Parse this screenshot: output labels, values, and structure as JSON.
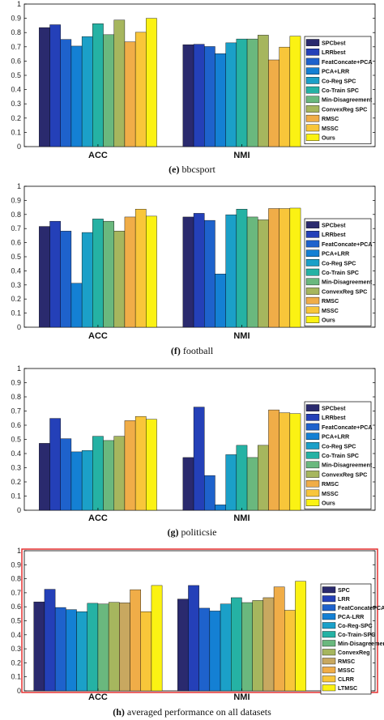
{
  "chart_data": [
    {
      "type": "bar",
      "caption_letter": "(e)",
      "caption_text": "bbcsport",
      "categories": [
        "ACC",
        "NMI"
      ],
      "ylim": [
        0,
        1
      ],
      "yticks": [
        "0",
        "0.1",
        "0.2",
        "0.3",
        "0.4",
        "0.5",
        "0.6",
        "0.7",
        "0.8",
        "0.9",
        "1"
      ],
      "legend_placement": "right",
      "highlight_border": false,
      "series": [
        {
          "name": "SPCbest",
          "color": "#2a2a6e",
          "values": [
            0.835,
            0.715
          ]
        },
        {
          "name": "LRRbest",
          "color": "#2440b8",
          "values": [
            0.855,
            0.718
          ]
        },
        {
          "name": "FeatConcate+PCA",
          "color": "#1e62cc",
          "values": [
            0.752,
            0.702
          ]
        },
        {
          "name": "PCA+LRR",
          "color": "#1480d4",
          "values": [
            0.705,
            0.652
          ]
        },
        {
          "name": "Co-Reg SPC",
          "color": "#1ba0c8",
          "values": [
            0.772,
            0.728
          ]
        },
        {
          "name": "Co-Train SPC",
          "color": "#25b2a4",
          "values": [
            0.862,
            0.755
          ]
        },
        {
          "name": "Min-Disagreement",
          "color": "#6ab87e",
          "values": [
            0.785,
            0.755
          ]
        },
        {
          "name": "ConvexReg SPC",
          "color": "#a6b65e",
          "values": [
            0.888,
            0.782
          ]
        },
        {
          "name": "RMSC",
          "color": "#f0ad48",
          "values": [
            0.735,
            0.608
          ]
        },
        {
          "name": "MSSC",
          "color": "#f8c63a",
          "values": [
            0.802,
            0.698
          ]
        },
        {
          "name": "Ours",
          "color": "#fbf213",
          "values": [
            0.9,
            0.775
          ]
        }
      ]
    },
    {
      "type": "bar",
      "caption_letter": "(f)",
      "caption_text": "football",
      "categories": [
        "ACC",
        "NMI"
      ],
      "ylim": [
        0,
        1
      ],
      "yticks": [
        "0",
        "0.1",
        "0.2",
        "0.3",
        "0.4",
        "0.5",
        "0.6",
        "0.7",
        "0.8",
        "0.9",
        "1"
      ],
      "legend_placement": "right",
      "highlight_border": false,
      "series": [
        {
          "name": "SPCbest",
          "color": "#2a2a6e",
          "values": [
            0.715,
            0.782
          ]
        },
        {
          "name": "LRRbest",
          "color": "#2440b8",
          "values": [
            0.752,
            0.808
          ]
        },
        {
          "name": "FeatConcate+PCA",
          "color": "#1e62cc",
          "values": [
            0.682,
            0.758
          ]
        },
        {
          "name": "PCA+LRR",
          "color": "#1480d4",
          "values": [
            0.312,
            0.378
          ]
        },
        {
          "name": "Co-Reg SPC",
          "color": "#1ba0c8",
          "values": [
            0.672,
            0.798
          ]
        },
        {
          "name": "Co-Train SPC",
          "color": "#25b2a4",
          "values": [
            0.768,
            0.838
          ]
        },
        {
          "name": "Min-Disagreement",
          "color": "#6ab87e",
          "values": [
            0.752,
            0.782
          ]
        },
        {
          "name": "ConvexReg SPC",
          "color": "#a6b65e",
          "values": [
            0.682,
            0.762
          ]
        },
        {
          "name": "RMSC",
          "color": "#f0ad48",
          "values": [
            0.782,
            0.842
          ]
        },
        {
          "name": "MSSC",
          "color": "#f8c63a",
          "values": [
            0.838,
            0.842
          ]
        },
        {
          "name": "Ours",
          "color": "#fbf213",
          "values": [
            0.788,
            0.845
          ]
        }
      ]
    },
    {
      "type": "bar",
      "caption_letter": "(g)",
      "caption_text": "politicsie",
      "categories": [
        "ACC",
        "NMI"
      ],
      "ylim": [
        0,
        1
      ],
      "yticks": [
        "0",
        "0.1",
        "0.2",
        "0.3",
        "0.4",
        "0.5",
        "0.6",
        "0.7",
        "0.8",
        "0.9",
        "1"
      ],
      "legend_placement": "right",
      "highlight_border": false,
      "series": [
        {
          "name": "SPCbest",
          "color": "#2a2a6e",
          "values": [
            0.472,
            0.372
          ]
        },
        {
          "name": "LRRbest",
          "color": "#2440b8",
          "values": [
            0.648,
            0.728
          ]
        },
        {
          "name": "FeatConcate+PCA",
          "color": "#1e62cc",
          "values": [
            0.505,
            0.245
          ]
        },
        {
          "name": "PCA+LRR",
          "color": "#1480d4",
          "values": [
            0.412,
            0.038
          ]
        },
        {
          "name": "Co-Reg SPC",
          "color": "#1ba0c8",
          "values": [
            0.422,
            0.392
          ]
        },
        {
          "name": "Co-Train SPC",
          "color": "#25b2a4",
          "values": [
            0.522,
            0.458
          ]
        },
        {
          "name": "Min-Disagreement",
          "color": "#6ab87e",
          "values": [
            0.492,
            0.372
          ]
        },
        {
          "name": "ConvexReg SPC",
          "color": "#a6b65e",
          "values": [
            0.522,
            0.458
          ]
        },
        {
          "name": "RMSC",
          "color": "#f0ad48",
          "values": [
            0.632,
            0.708
          ]
        },
        {
          "name": "MSSC",
          "color": "#f8c63a",
          "values": [
            0.662,
            0.688
          ]
        },
        {
          "name": "Ours",
          "color": "#fbf213",
          "values": [
            0.642,
            0.682
          ]
        }
      ]
    },
    {
      "type": "bar",
      "caption_letter": "(h)",
      "caption_text": "averaged performance on all datasets",
      "categories": [
        "ACC",
        "NMI"
      ],
      "ylim": [
        0,
        1
      ],
      "yticks": [
        "0",
        "0.1",
        "0.2",
        "0.3",
        "0.4",
        "0.5",
        "0.6",
        "0.7",
        "0.8",
        "0.9",
        "1"
      ],
      "legend_placement": "right",
      "highlight_border": true,
      "border_color": "#e53030",
      "series": [
        {
          "name": "SPC",
          "color": "#2a2a6e",
          "values": [
            0.635,
            0.655
          ]
        },
        {
          "name": "LRR",
          "color": "#2440b8",
          "values": [
            0.725,
            0.752
          ]
        },
        {
          "name": "FeatConcatePCA",
          "color": "#1e62cc",
          "values": [
            0.595,
            0.59
          ]
        },
        {
          "name": "PCA-LRR",
          "color": "#1480d4",
          "values": [
            0.58,
            0.57
          ]
        },
        {
          "name": "Co-Reg-SPC",
          "color": "#1ba0c8",
          "values": [
            0.565,
            0.62
          ]
        },
        {
          "name": "Co-Train-SPC",
          "color": "#25b2a4",
          "values": [
            0.625,
            0.665
          ]
        },
        {
          "name": "Min-Disagreement",
          "color": "#6ab87e",
          "values": [
            0.62,
            0.63
          ]
        },
        {
          "name": "ConvexReg",
          "color": "#a6b65e",
          "values": [
            0.632,
            0.645
          ]
        },
        {
          "name": "RMSC",
          "color": "#c8a860",
          "values": [
            0.628,
            0.665
          ]
        },
        {
          "name": "MSSC",
          "color": "#f0ad48",
          "values": [
            0.722,
            0.742
          ]
        },
        {
          "name": "CLRR",
          "color": "#f8c63a",
          "values": [
            0.565,
            0.575
          ]
        },
        {
          "name": "LTMSC",
          "color": "#fbf213",
          "values": [
            0.752,
            0.782
          ]
        }
      ]
    }
  ]
}
